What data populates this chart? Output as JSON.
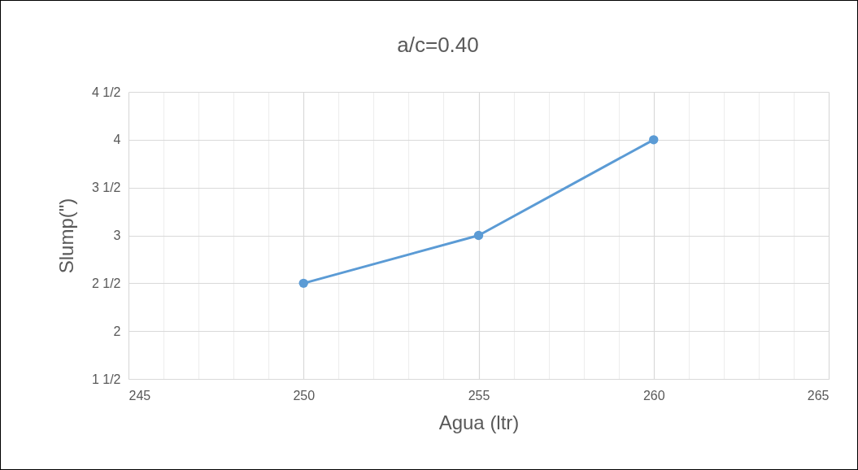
{
  "chart_data": {
    "type": "line",
    "title": "a/c=0.40",
    "xlabel": "Agua (ltr)",
    "ylabel": "Slump(\")",
    "x": [
      250,
      255,
      260
    ],
    "series": [
      {
        "color": "#5b9bd5",
        "values": [
          2.5,
          3,
          4
        ]
      }
    ],
    "xlim": [
      245,
      265
    ],
    "xticks": [
      245,
      {
        "value": 246,
        "label": null
      },
      {
        "value": 247,
        "label": null
      },
      {
        "value": 248,
        "label": null
      },
      {
        "value": 249,
        "label": null
      },
      250,
      {
        "value": 251,
        "label": null
      },
      {
        "value": 252,
        "label": null
      },
      {
        "value": 253,
        "label": null
      },
      {
        "value": 254,
        "label": null
      },
      255,
      {
        "value": 256,
        "label": null
      },
      {
        "value": 257,
        "label": null
      },
      {
        "value": 258,
        "label": null
      },
      {
        "value": 259,
        "label": null
      },
      260,
      {
        "value": 261,
        "label": null
      },
      {
        "value": 262,
        "label": null
      },
      {
        "value": 263,
        "label": null
      },
      {
        "value": 264,
        "label": null
      },
      265
    ],
    "ylim": [
      1.5,
      4.5
    ],
    "yticks": [
      {
        "value": 1.5,
        "label": "1 1/2"
      },
      2,
      {
        "value": 2.5,
        "label": "2 1/2"
      },
      3,
      {
        "value": 3.5,
        "label": "3 1/2"
      },
      4,
      {
        "value": 4.5,
        "label": "4 1/2"
      }
    ],
    "grid": true,
    "marker": "circle",
    "line_style": "solid"
  }
}
